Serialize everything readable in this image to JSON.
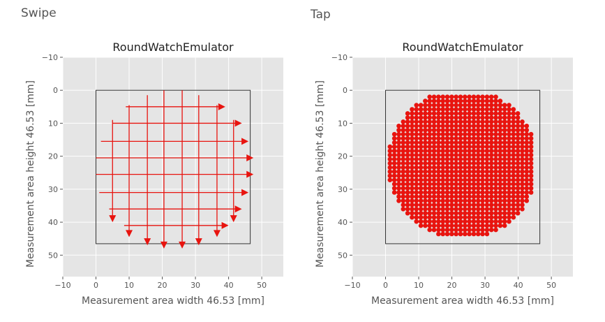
{
  "headings": {
    "swipe": "Swipe",
    "tap": "Tap"
  },
  "chart_data": [
    {
      "type": "vector",
      "panel": "swipe",
      "title": "RoundWatchEmulator",
      "xlabel": "Measurement area width 46.53 [mm]",
      "ylabel": "Measurement area height 46.53 [mm]",
      "xlim": [
        -10,
        56.5
      ],
      "ylim": [
        56.5,
        -10
      ],
      "xticks": [
        -10,
        0,
        10,
        20,
        30,
        40,
        50
      ],
      "yticks": [
        -10,
        0,
        10,
        20,
        30,
        40,
        50
      ],
      "grid": true,
      "color": "#e8140f",
      "frame_color": "#333333",
      "measurement_area": {
        "x0": 0,
        "y0": 0,
        "x1": 46.53,
        "y1": 46.53
      },
      "horizontal_swipes": [
        {
          "y": 5,
          "x_start": 9,
          "x_end": 39
        },
        {
          "y": 10,
          "x_start": 5,
          "x_end": 44
        },
        {
          "y": 15.5,
          "x_start": 1.5,
          "x_end": 46
        },
        {
          "y": 20.5,
          "x_start": 0,
          "x_end": 47.5
        },
        {
          "y": 25.5,
          "x_start": 0,
          "x_end": 47.5
        },
        {
          "y": 31,
          "x_start": 1,
          "x_end": 46
        },
        {
          "y": 36,
          "x_start": 4,
          "x_end": 44
        },
        {
          "y": 41,
          "x_start": 8.5,
          "x_end": 40
        }
      ],
      "vertical_swipes": [
        {
          "x": 5,
          "y_start": 9,
          "y_end": 40
        },
        {
          "x": 10,
          "y_start": 4.5,
          "y_end": 44.5
        },
        {
          "x": 15.5,
          "y_start": 1.5,
          "y_end": 47
        },
        {
          "x": 20.5,
          "y_start": 0,
          "y_end": 48
        },
        {
          "x": 26,
          "y_start": 0,
          "y_end": 48
        },
        {
          "x": 31,
          "y_start": 1.5,
          "y_end": 47
        },
        {
          "x": 36.5,
          "y_start": 4.5,
          "y_end": 44.5
        },
        {
          "x": 41.5,
          "y_start": 9,
          "y_end": 40
        }
      ]
    },
    {
      "type": "scatter",
      "panel": "tap",
      "title": "RoundWatchEmulator",
      "xlabel": "Measurement area width 46.53 [mm]",
      "ylabel": "Measurement area height 46.53 [mm]",
      "xlim": [
        -10,
        56.5
      ],
      "ylim": [
        56.5,
        -10
      ],
      "xticks": [
        -10,
        0,
        10,
        20,
        30,
        40,
        50
      ],
      "yticks": [
        -10,
        0,
        10,
        20,
        30,
        40,
        50
      ],
      "grid": true,
      "color": "#e8140f",
      "frame_color": "#333333",
      "measurement_area": {
        "x0": 0,
        "y0": 0,
        "x1": 46.53,
        "y1": 46.53
      },
      "points": {
        "pattern": "grid_in_circle",
        "center": [
          23.27,
          22.3
        ],
        "radius": 22.7,
        "spacing_x": 1.33,
        "spacing_y": 1.26,
        "x_range": [
          1.33,
          44.56
        ],
        "y_range": [
          2.0,
          44.7
        ]
      }
    }
  ]
}
